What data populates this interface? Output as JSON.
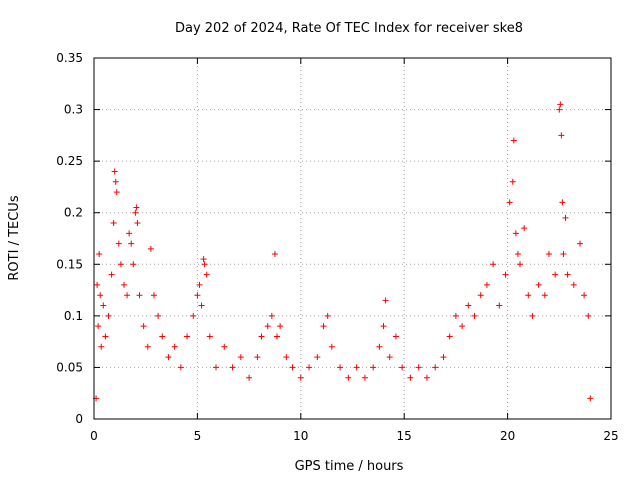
{
  "chart_data": {
    "type": "scatter",
    "title": "Day 202 of 2024, Rate Of TEC Index for receiver ske8",
    "xlabel": "GPS time / hours",
    "ylabel": "ROTI / TECUs",
    "xlim": [
      0,
      25
    ],
    "ylim": [
      0,
      0.35
    ],
    "xticks": [
      0,
      5,
      10,
      15,
      20,
      25
    ],
    "xtick_labels": [
      "0",
      "5",
      "10",
      "15",
      "20",
      "25"
    ],
    "yticks": [
      0,
      0.05,
      0.1,
      0.15,
      0.2,
      0.25,
      0.3,
      0.35
    ],
    "ytick_labels": [
      "0",
      "0.05",
      "0.1",
      "0.15",
      "0.2",
      "0.25",
      "0.3",
      "0.35"
    ],
    "grid": true,
    "marker": "+",
    "color": "#ff0000",
    "series": [
      {
        "name": "ROTI",
        "points": [
          [
            0.1,
            0.02
          ],
          [
            0.15,
            0.13
          ],
          [
            0.2,
            0.09
          ],
          [
            0.25,
            0.16
          ],
          [
            0.3,
            0.12
          ],
          [
            0.35,
            0.07
          ],
          [
            0.45,
            0.11
          ],
          [
            0.55,
            0.08
          ],
          [
            0.7,
            0.1
          ],
          [
            0.85,
            0.14
          ],
          [
            0.95,
            0.19
          ],
          [
            1.0,
            0.24
          ],
          [
            1.05,
            0.23
          ],
          [
            1.1,
            0.22
          ],
          [
            1.2,
            0.17
          ],
          [
            1.3,
            0.15
          ],
          [
            1.45,
            0.13
          ],
          [
            1.6,
            0.12
          ],
          [
            1.7,
            0.18
          ],
          [
            1.8,
            0.17
          ],
          [
            1.9,
            0.15
          ],
          [
            2.0,
            0.2
          ],
          [
            2.05,
            0.205
          ],
          [
            2.1,
            0.19
          ],
          [
            2.2,
            0.12
          ],
          [
            2.4,
            0.09
          ],
          [
            2.6,
            0.07
          ],
          [
            2.75,
            0.165
          ],
          [
            2.9,
            0.12
          ],
          [
            3.1,
            0.1
          ],
          [
            3.3,
            0.08
          ],
          [
            3.6,
            0.06
          ],
          [
            3.9,
            0.07
          ],
          [
            4.2,
            0.05
          ],
          [
            4.5,
            0.08
          ],
          [
            4.8,
            0.1
          ],
          [
            5.0,
            0.12
          ],
          [
            5.1,
            0.13
          ],
          [
            5.2,
            0.11
          ],
          [
            5.3,
            0.155
          ],
          [
            5.35,
            0.15
          ],
          [
            5.45,
            0.14
          ],
          [
            5.6,
            0.08
          ],
          [
            5.9,
            0.05
          ],
          [
            6.3,
            0.07
          ],
          [
            6.7,
            0.05
          ],
          [
            7.1,
            0.06
          ],
          [
            7.5,
            0.04
          ],
          [
            7.9,
            0.06
          ],
          [
            8.1,
            0.08
          ],
          [
            8.4,
            0.09
          ],
          [
            8.6,
            0.1
          ],
          [
            8.75,
            0.16
          ],
          [
            8.85,
            0.08
          ],
          [
            9.0,
            0.09
          ],
          [
            9.3,
            0.06
          ],
          [
            9.6,
            0.05
          ],
          [
            10.0,
            0.04
          ],
          [
            10.4,
            0.05
          ],
          [
            10.8,
            0.06
          ],
          [
            11.1,
            0.09
          ],
          [
            11.3,
            0.1
          ],
          [
            11.5,
            0.07
          ],
          [
            11.9,
            0.05
          ],
          [
            12.3,
            0.04
          ],
          [
            12.7,
            0.05
          ],
          [
            13.1,
            0.04
          ],
          [
            13.5,
            0.05
          ],
          [
            13.8,
            0.07
          ],
          [
            14.0,
            0.09
          ],
          [
            14.1,
            0.115
          ],
          [
            14.3,
            0.06
          ],
          [
            14.6,
            0.08
          ],
          [
            14.9,
            0.05
          ],
          [
            15.3,
            0.04
          ],
          [
            15.7,
            0.05
          ],
          [
            16.1,
            0.04
          ],
          [
            16.5,
            0.05
          ],
          [
            16.9,
            0.06
          ],
          [
            17.2,
            0.08
          ],
          [
            17.5,
            0.1
          ],
          [
            17.8,
            0.09
          ],
          [
            18.1,
            0.11
          ],
          [
            18.4,
            0.1
          ],
          [
            18.7,
            0.12
          ],
          [
            19.0,
            0.13
          ],
          [
            19.3,
            0.15
          ],
          [
            19.6,
            0.11
          ],
          [
            19.9,
            0.14
          ],
          [
            20.1,
            0.21
          ],
          [
            20.25,
            0.23
          ],
          [
            20.3,
            0.27
          ],
          [
            20.4,
            0.18
          ],
          [
            20.5,
            0.16
          ],
          [
            20.6,
            0.15
          ],
          [
            20.8,
            0.185
          ],
          [
            21.0,
            0.12
          ],
          [
            21.2,
            0.1
          ],
          [
            21.5,
            0.13
          ],
          [
            21.8,
            0.12
          ],
          [
            22.0,
            0.16
          ],
          [
            22.3,
            0.14
          ],
          [
            22.5,
            0.3
          ],
          [
            22.55,
            0.305
          ],
          [
            22.6,
            0.275
          ],
          [
            22.65,
            0.21
          ],
          [
            22.7,
            0.16
          ],
          [
            22.8,
            0.195
          ],
          [
            22.9,
            0.14
          ],
          [
            23.2,
            0.13
          ],
          [
            23.5,
            0.17
          ],
          [
            23.7,
            0.12
          ],
          [
            23.9,
            0.1
          ],
          [
            24.0,
            0.02
          ]
        ]
      }
    ]
  }
}
